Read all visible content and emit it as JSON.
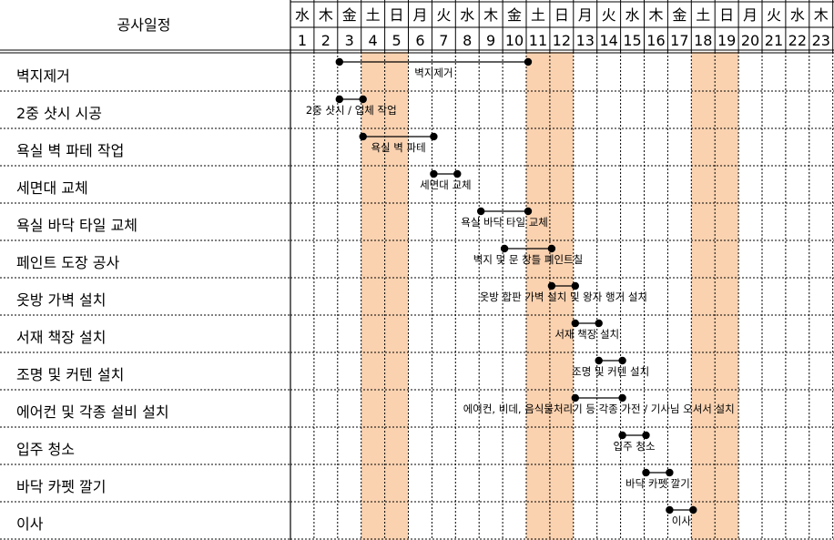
{
  "chart_data": {
    "type": "gantt",
    "header_title": "공사일정",
    "days": [
      1,
      2,
      3,
      4,
      5,
      6,
      7,
      8,
      9,
      10,
      11,
      12,
      13,
      14,
      15,
      16,
      17,
      18,
      19,
      20,
      21,
      22,
      23
    ],
    "weekdays": [
      "水",
      "木",
      "金",
      "土",
      "日",
      "月",
      "火",
      "水",
      "木",
      "金",
      "土",
      "日",
      "月",
      "火",
      "水",
      "木",
      "金",
      "土",
      "日",
      "月",
      "火",
      "水",
      "木"
    ],
    "weekend_days": [
      4,
      5,
      11,
      12,
      18,
      19
    ],
    "weekend_color": "#fad2b0",
    "tasks": [
      {
        "name": "벽지제거",
        "start": 3,
        "end": 11,
        "label": "벽지제거"
      },
      {
        "name": "2중 샷시 시공",
        "start": 3,
        "end": 4,
        "label": "2중 샷시 / 업체 작업"
      },
      {
        "name": "욕실 벽 파테 작업",
        "start": 4,
        "end": 7,
        "label": "욕실 벽 파테"
      },
      {
        "name": "세면대 교체",
        "start": 7,
        "end": 8,
        "label": "세면대 교체"
      },
      {
        "name": "욕실 바닥 타일 교체",
        "start": 9,
        "end": 11,
        "label": "욕실 바닥 타일 교체"
      },
      {
        "name": "페인트 도장 공사",
        "start": 10,
        "end": 12,
        "label": "벽지 및 문 창틀 페인트칠"
      },
      {
        "name": "옷방 가벽 설치",
        "start": 12,
        "end": 13,
        "label": "옷방 합판 가벽 설치 및 왕자 행거 설치"
      },
      {
        "name": "서재 책장 설치",
        "start": 13,
        "end": 14,
        "label": "서재 책장 설치"
      },
      {
        "name": "조명 및 커텐 설치",
        "start": 14,
        "end": 15,
        "label": "조명 및 커텐 설치"
      },
      {
        "name": "에어컨 및 각종 설비 설치",
        "start": 13,
        "end": 15,
        "label": "에어컨, 비데, 음식물처리기 등 각종 가전 / 기사님 오셔서 설치"
      },
      {
        "name": "입주 청소",
        "start": 15,
        "end": 16,
        "label": "입주 청소"
      },
      {
        "name": "바닥 카펫 깔기",
        "start": 16,
        "end": 17,
        "label": "바닥 카펫 깔기"
      },
      {
        "name": "이사",
        "start": 17,
        "end": 18,
        "label": "이사"
      }
    ]
  }
}
